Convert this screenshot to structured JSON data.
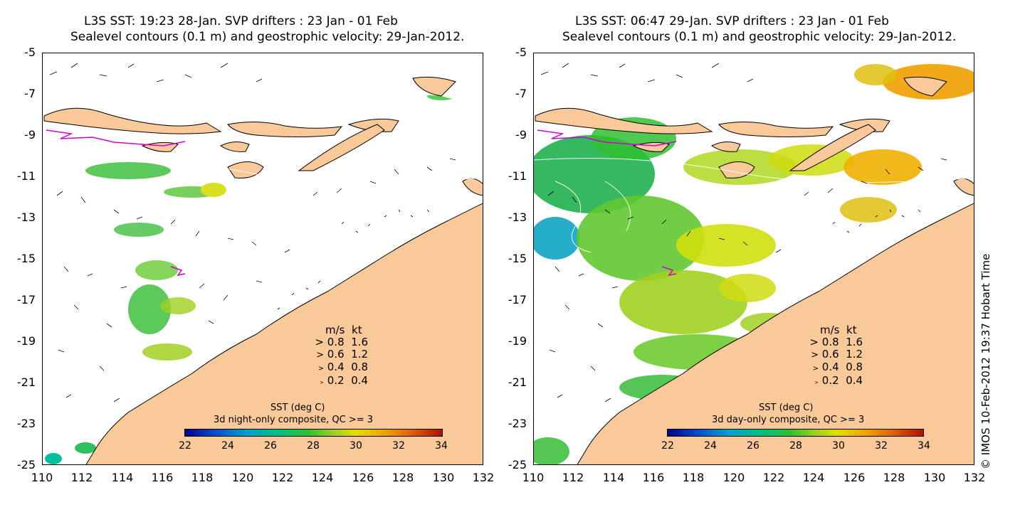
{
  "panels": [
    {
      "title_line1": "L3S SST: 19:23 28-Jan. SVP drifters : 23 Jan - 01 Feb",
      "title_line2": "Sealevel contours (0.1 m) and geostrophic velocity: 29-Jan-2012.",
      "colorbar_title": "SST (deg C)",
      "colorbar_subtitle": "3d night-only composite, QC >= 3"
    },
    {
      "title_line1": "L3S SST: 06:47 29-Jan. SVP drifters : 23 Jan - 01 Feb",
      "title_line2": "Sealevel contours (0.1 m) and geostrophic velocity: 29-Jan-2012.",
      "colorbar_title": "SST (deg C)",
      "colorbar_subtitle": "3d day-only composite, QC >= 3"
    }
  ],
  "lat_ticks": [
    "-5",
    "-7",
    "-9",
    "-11",
    "-13",
    "-15",
    "-17",
    "-19",
    "-21",
    "-23",
    "-25"
  ],
  "lon_ticks": [
    "110",
    "112",
    "114",
    "116",
    "118",
    "120",
    "122",
    "124",
    "126",
    "128",
    "130",
    "132"
  ],
  "colorbar_ticks": [
    "22",
    "24",
    "26",
    "28",
    "30",
    "32",
    "34"
  ],
  "speed_legend": {
    "header_ms": "m/s",
    "header_kt": "kt",
    "rows": [
      {
        "ms": "0.8",
        "kt": "1.6"
      },
      {
        "ms": "0.6",
        "kt": "1.2"
      },
      {
        "ms": "0.4",
        "kt": "0.8"
      },
      {
        "ms": "0.2",
        "kt": "0.4"
      }
    ]
  },
  "credit": "© IMOS 10-Feb-2012 19:37 Hobart Time",
  "colors": {
    "land": "#f9c99a",
    "drifter": "#d000d0",
    "sst_scale": [
      "#00008b",
      "#0050d0",
      "#00a0d0",
      "#00c080",
      "#30c030",
      "#a0d020",
      "#e0e000",
      "#f0a000",
      "#e06000",
      "#b01000"
    ]
  }
}
